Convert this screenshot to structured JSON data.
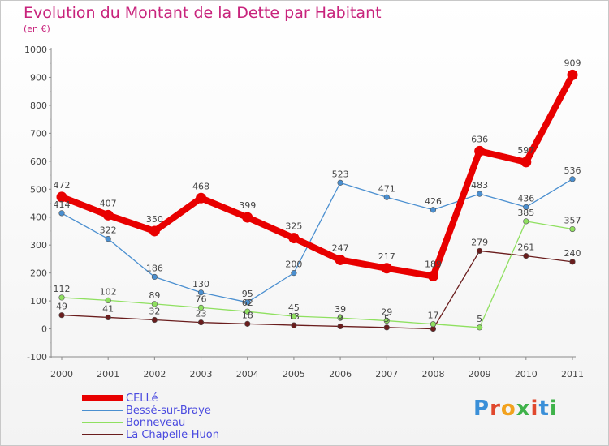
{
  "header": {
    "title": "Evolution du Montant de la Dette par Habitant",
    "subtitle": "(en €)"
  },
  "brand": {
    "letters": [
      "P",
      "r",
      "o",
      "x",
      "i",
      "t",
      "i"
    ],
    "colors": [
      "#3a8fd8",
      "#e0482d",
      "#f2a21e",
      "#3fb24a",
      "#e0482d",
      "#3a8fd8",
      "#3fb24a"
    ]
  },
  "chart_data": {
    "type": "line",
    "x": [
      "2000",
      "2001",
      "2002",
      "2003",
      "2004",
      "2005",
      "2006",
      "2007",
      "2008",
      "2009",
      "2010",
      "2011"
    ],
    "ylim": [
      -100,
      1000
    ],
    "yticks": [
      -100,
      0,
      100,
      200,
      300,
      400,
      500,
      600,
      700,
      800,
      900,
      1000
    ],
    "grid": false,
    "legend": "bottom-left",
    "series": [
      {
        "name": "CELLé",
        "color": "#e80000",
        "values": [
          472,
          407,
          350,
          468,
          399,
          325,
          247,
          217,
          189,
          636,
          597,
          909
        ],
        "labels": [
          "472",
          "407",
          "350",
          "468",
          "399",
          "325",
          "247",
          "217",
          "189",
          "636",
          "597",
          "909"
        ]
      },
      {
        "name": "Bessé-sur-Braye",
        "color": "#4a8fd0",
        "values": [
          414,
          322,
          186,
          130,
          95,
          200,
          523,
          471,
          426,
          483,
          436,
          536
        ],
        "labels": [
          "414",
          "322",
          "186",
          "130",
          "95",
          "200",
          "523",
          "471",
          "426",
          "483",
          "436",
          "536"
        ]
      },
      {
        "name": "Bonneveau",
        "color": "#8fe060",
        "values": [
          112,
          102,
          89,
          76,
          62,
          45,
          39,
          29,
          17,
          5,
          385,
          357
        ],
        "labels": [
          "112",
          "102",
          "89",
          "76",
          "62",
          "45",
          "39",
          "29",
          "17",
          "5",
          "385",
          "357"
        ]
      },
      {
        "name": "La Chapelle-Huon",
        "color": "#6a1d1d",
        "values": [
          49,
          41,
          32,
          23,
          18,
          13,
          9,
          5,
          0,
          279,
          261,
          240
        ],
        "labels": [
          "49",
          "41",
          "32",
          "23",
          "18",
          "13",
          "9",
          "5",
          "",
          "279",
          "261",
          "240"
        ]
      }
    ]
  }
}
